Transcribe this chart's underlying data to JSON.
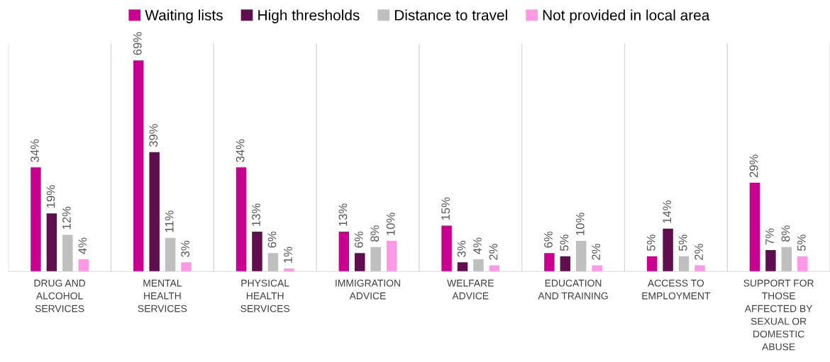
{
  "chart_data": {
    "type": "bar",
    "categories": [
      "DRUG AND\nALCOHOL\nSERVICES",
      "MENTAL\nHEALTH\nSERVICES",
      "PHYSICAL\nHEALTH\nSERVICES",
      "IMMIGRATION\nADVICE",
      "WELFARE\nADVICE",
      "EDUCATION\nAND TRAINING",
      "ACCESS TO\nEMPLOYMENT",
      "SUPPORT FOR\nTHOSE\nAFFECTED BY\nSEXUAL OR\nDOMESTIC\nABUSE"
    ],
    "series": [
      {
        "name": "Waiting lists",
        "color": "#c8008f",
        "values": [
          34,
          69,
          34,
          13,
          15,
          6,
          5,
          29
        ],
        "value_labels": [
          "34%",
          "69%",
          "34%",
          "13%",
          "15%",
          "6%",
          "5%",
          "29%"
        ]
      },
      {
        "name": "High thresholds",
        "color": "#5f0f4e",
        "values": [
          19,
          39,
          13,
          6,
          3,
          5,
          14,
          7
        ],
        "value_labels": [
          "19%",
          "39%",
          "13%",
          "6%",
          "3%",
          "5%",
          "14%",
          "7%"
        ]
      },
      {
        "name": "Distance to travel",
        "color": "#bfbfbf",
        "values": [
          12,
          11,
          6,
          8,
          4,
          10,
          5,
          8
        ],
        "value_labels": [
          "12%",
          "11%",
          "6%",
          "8%",
          "4%",
          "10%",
          "5%",
          "8%"
        ]
      },
      {
        "name": "Not provided in local area",
        "color": "#ff99e6",
        "values": [
          4,
          3,
          1,
          10,
          2,
          2,
          2,
          5
        ],
        "value_labels": [
          "4%",
          "3%",
          "1%",
          "10%",
          "2%",
          "2%",
          "2%",
          "5%"
        ]
      }
    ],
    "grid": "x",
    "legend": "top"
  }
}
